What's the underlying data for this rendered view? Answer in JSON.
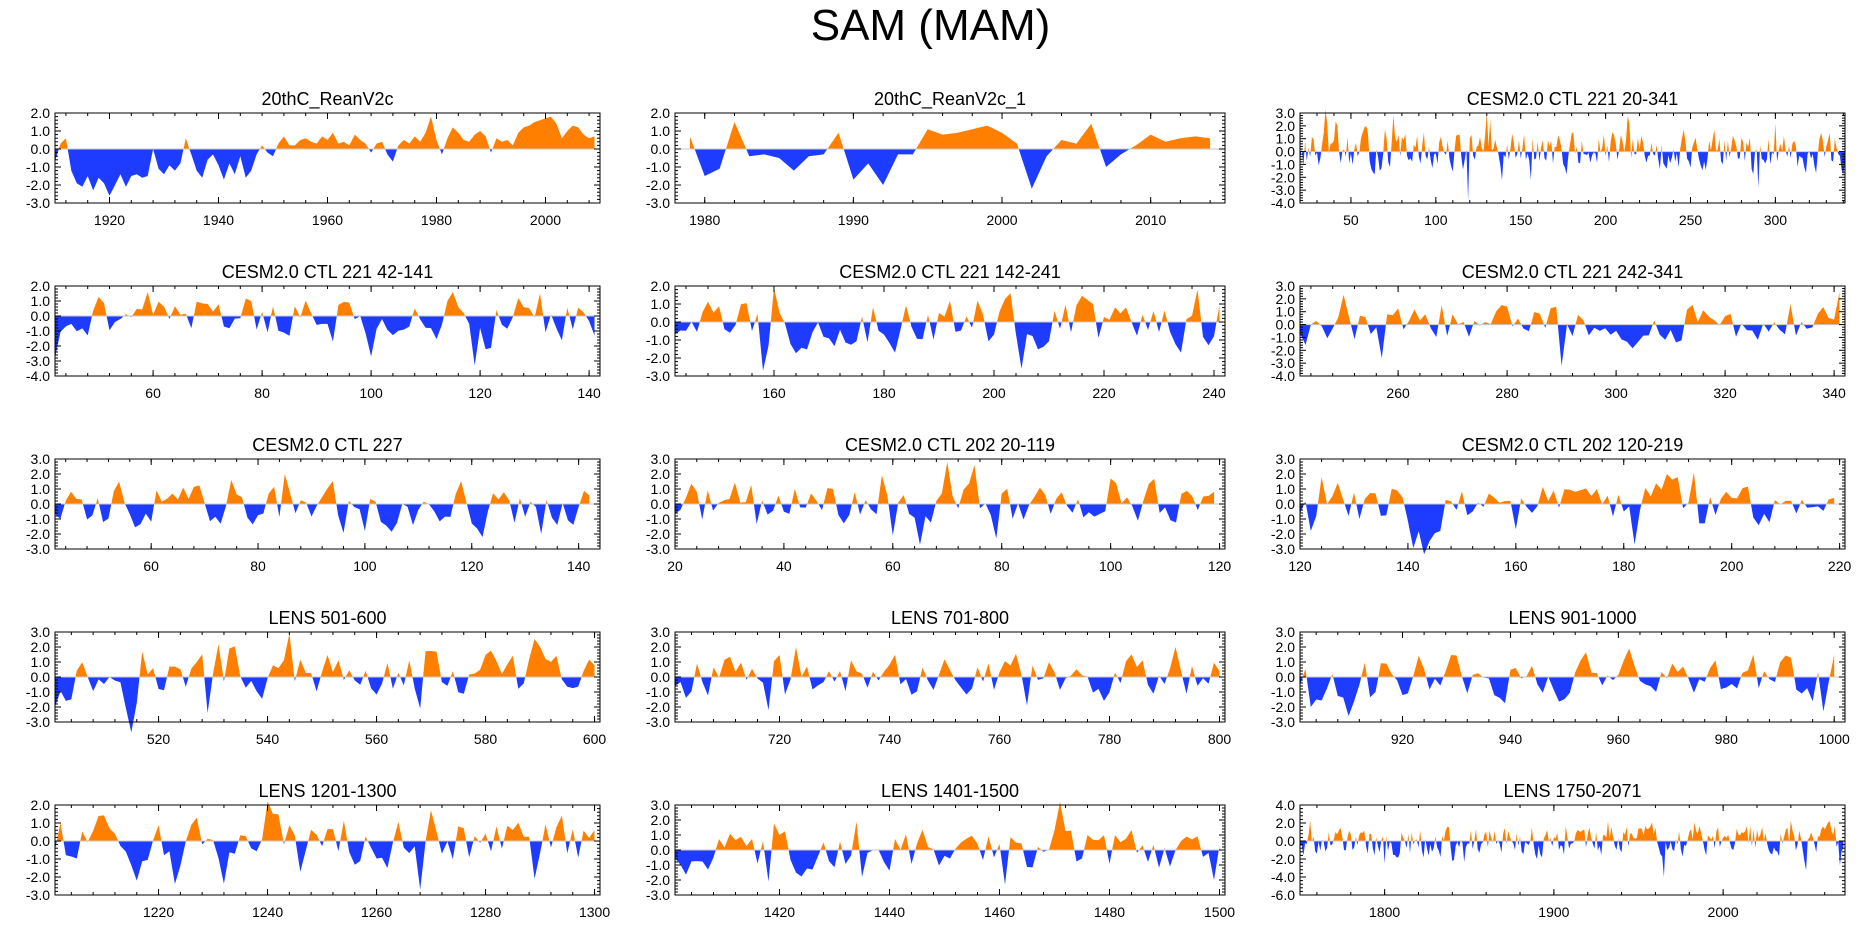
{
  "title": "SAM (MAM)",
  "colors": {
    "positive": "#ff8000",
    "negative": "#1e3cff",
    "axis": "#000000"
  },
  "chart_data": [
    {
      "type": "area",
      "title": "20thC_ReanV2c",
      "xlim": [
        1910,
        2010
      ],
      "ylim": [
        -3,
        2
      ],
      "yticks": [
        -3,
        -2,
        -1,
        0,
        1,
        2
      ],
      "ytick_labels": [
        "-3.0",
        "-2.0",
        "-1.0",
        "0.0",
        "1.0",
        "2.0"
      ],
      "xticks": [
        1920,
        1940,
        1960,
        1980,
        2000
      ],
      "xtick_labels": [
        "1920",
        "1940",
        "1960",
        "1980",
        "2000"
      ],
      "x": [
        1910,
        1911,
        1912,
        1913,
        1914,
        1915,
        1916,
        1917,
        1918,
        1919,
        1920,
        1921,
        1922,
        1923,
        1924,
        1925,
        1926,
        1927,
        1928,
        1929,
        1930,
        1931,
        1932,
        1933,
        1934,
        1935,
        1936,
        1937,
        1938,
        1939,
        1940,
        1941,
        1942,
        1943,
        1944,
        1945,
        1946,
        1947,
        1948,
        1949,
        1950,
        1951,
        1952,
        1953,
        1954,
        1955,
        1956,
        1957,
        1958,
        1959,
        1960,
        1961,
        1962,
        1963,
        1964,
        1965,
        1966,
        1967,
        1968,
        1969,
        1970,
        1971,
        1972,
        1973,
        1974,
        1975,
        1976,
        1977,
        1978,
        1979,
        1980,
        1981,
        1982,
        1983,
        1984,
        1985,
        1986,
        1987,
        1988,
        1989,
        1990,
        1991,
        1992,
        1993,
        1994,
        1995,
        1996,
        1997,
        1998,
        1999,
        2000,
        2001,
        2002,
        2003,
        2004,
        2005,
        2006,
        2007,
        2008,
        2009
      ],
      "values": [
        -0.7,
        0.3,
        0.6,
        -1.2,
        -1.9,
        -2.1,
        -1.5,
        -2.3,
        -1.6,
        -1.9,
        -2.6,
        -2.0,
        -1.4,
        -2.1,
        -1.5,
        -1.4,
        -1.6,
        -1.5,
        0.0,
        -1.1,
        -1.4,
        -0.9,
        -1.2,
        -0.8,
        0.6,
        -0.3,
        -1.2,
        -1.6,
        -0.6,
        -0.3,
        -0.9,
        -1.7,
        -0.8,
        -1.4,
        -0.4,
        -1.6,
        -1.2,
        -0.3,
        0.2,
        -0.2,
        -0.4,
        0.3,
        0.7,
        0.2,
        0.2,
        0.5,
        0.6,
        0.4,
        0.3,
        0.7,
        0.5,
        0.9,
        0.3,
        0.4,
        0.2,
        0.8,
        0.5,
        0.3,
        -0.2,
        0.3,
        0.4,
        -0.3,
        -0.7,
        0.2,
        0.5,
        0.3,
        0.7,
        0.4,
        0.9,
        1.8,
        0.5,
        -0.3,
        0.6,
        1.2,
        0.9,
        0.5,
        0.4,
        0.8,
        1.0,
        0.7,
        -0.2,
        0.6,
        0.4,
        0.5,
        0.2,
        0.9,
        1.2,
        1.3,
        1.5,
        1.6,
        1.7,
        1.8,
        1.4,
        0.6,
        1.0,
        1.3,
        1.2,
        0.8,
        0.6,
        0.7
      ]
    },
    {
      "type": "area",
      "title": "20thC_ReanV2c_1",
      "xlim": [
        1978,
        2015
      ],
      "ylim": [
        -3,
        2
      ],
      "yticks": [
        -3,
        -2,
        -1,
        0,
        1,
        2
      ],
      "ytick_labels": [
        "-3.0",
        "-2.0",
        "-1.0",
        "0.0",
        "1.0",
        "2.0"
      ],
      "xticks": [
        1980,
        1990,
        2000,
        2010
      ],
      "xtick_labels": [
        "1980",
        "1990",
        "2000",
        "2010"
      ],
      "x": [
        1979,
        1980,
        1981,
        1982,
        1983,
        1984,
        1985,
        1986,
        1987,
        1988,
        1989,
        1990,
        1991,
        1992,
        1993,
        1994,
        1995,
        1996,
        1997,
        1998,
        1999,
        2000,
        2001,
        2002,
        2003,
        2004,
        2005,
        2006,
        2007,
        2008,
        2009,
        2010,
        2011,
        2012,
        2013,
        2014
      ],
      "values": [
        0.7,
        -1.5,
        -1.1,
        1.5,
        -0.4,
        -0.3,
        -0.5,
        -1.2,
        -0.4,
        -0.3,
        0.9,
        -1.7,
        -0.8,
        -2.0,
        -0.3,
        -0.3,
        1.1,
        0.8,
        0.9,
        1.1,
        1.3,
        0.9,
        0.3,
        -2.2,
        -0.4,
        0.5,
        0.3,
        1.4,
        -1.0,
        -0.3,
        0.2,
        0.8,
        0.4,
        0.6,
        0.7,
        0.6
      ]
    },
    {
      "type": "area",
      "title": "CESM2.0 CTL 221 20-341",
      "xlim": [
        20,
        341
      ],
      "ylim": [
        -4,
        3
      ],
      "yticks": [
        -4,
        -3,
        -2,
        -1,
        0,
        1,
        2,
        3
      ],
      "ytick_labels": [
        "-4.0",
        "-3.0",
        "-2.0",
        "-1.0",
        "0.0",
        "1.0",
        "2.0",
        "3.0"
      ],
      "xticks": [
        50,
        100,
        150,
        200,
        250,
        300
      ],
      "xtick_labels": [
        "50",
        "100",
        "150",
        "200",
        "250",
        "300"
      ],
      "gen": {
        "start": 20,
        "end": 341,
        "amp": 0.9,
        "seed": 13,
        "spikes": [
          [
            119,
            -3.8
          ],
          [
            290,
            -2.8
          ],
          [
            156,
            -2.2
          ],
          [
            300,
            2.2
          ],
          [
            70,
            1.7
          ]
        ]
      }
    },
    {
      "type": "area",
      "title": "CESM2.0 CTL 221 42-141",
      "xlim": [
        42,
        142
      ],
      "ylim": [
        -4,
        2
      ],
      "yticks": [
        -4,
        -3,
        -2,
        -1,
        0,
        1,
        2
      ],
      "ytick_labels": [
        "-4.0",
        "-3.0",
        "-2.0",
        "-1.0",
        "0.0",
        "1.0",
        "2.0"
      ],
      "xticks": [
        60,
        80,
        100,
        120,
        140
      ],
      "xtick_labels": [
        "60",
        "80",
        "100",
        "120",
        "140"
      ],
      "gen": {
        "start": 42,
        "end": 141,
        "amp": 0.9,
        "seed": 21,
        "spikes": [
          [
            42,
            -2.8
          ],
          [
            119,
            -3.3
          ],
          [
            100,
            -2.7
          ],
          [
            59,
            1.6
          ],
          [
            131,
            1.5
          ]
        ]
      }
    },
    {
      "type": "area",
      "title": "CESM2.0 CTL 221 142-241",
      "xlim": [
        142,
        242
      ],
      "ylim": [
        -3,
        2
      ],
      "yticks": [
        -3,
        -2,
        -1,
        0,
        1,
        2
      ],
      "ytick_labels": [
        "-3.0",
        "-2.0",
        "-1.0",
        "0.0",
        "1.0",
        "2.0"
      ],
      "xticks": [
        160,
        180,
        200,
        220,
        240
      ],
      "xtick_labels": [
        "160",
        "180",
        "200",
        "220",
        "240"
      ],
      "gen": {
        "start": 142,
        "end": 241,
        "amp": 0.9,
        "seed": 33,
        "spikes": [
          [
            158,
            -2.7
          ],
          [
            205,
            -2.6
          ],
          [
            160,
            1.9
          ],
          [
            237,
            1.8
          ]
        ]
      }
    },
    {
      "type": "area",
      "title": "CESM2.0 CTL 221 242-341",
      "xlim": [
        242,
        342
      ],
      "ylim": [
        -4,
        3
      ],
      "yticks": [
        -4,
        -3,
        -2,
        -1,
        0,
        1,
        2,
        3
      ],
      "ytick_labels": [
        "-4.0",
        "-3.0",
        "-2.0",
        "-1.0",
        "0.0",
        "1.0",
        "2.0",
        "3.0"
      ],
      "xticks": [
        260,
        280,
        300,
        320,
        340
      ],
      "xtick_labels": [
        "260",
        "280",
        "300",
        "320",
        "340"
      ],
      "gen": {
        "start": 242,
        "end": 341,
        "amp": 0.9,
        "seed": 47,
        "spikes": [
          [
            290,
            -3.2
          ],
          [
            257,
            -2.6
          ],
          [
            268,
            1.5
          ],
          [
            332,
            1.6
          ]
        ]
      }
    },
    {
      "type": "area",
      "title": "CESM2.0 CTL 227",
      "xlim": [
        42,
        144
      ],
      "ylim": [
        -3,
        3
      ],
      "yticks": [
        -3,
        -2,
        -1,
        0,
        1,
        2,
        3
      ],
      "ytick_labels": [
        "-3.0",
        "-2.0",
        "-1.0",
        "0.0",
        "1.0",
        "2.0",
        "3.0"
      ],
      "xticks": [
        60,
        80,
        100,
        120,
        140
      ],
      "xtick_labels": [
        "60",
        "80",
        "100",
        "120",
        "140"
      ],
      "gen": {
        "start": 42,
        "end": 142,
        "amp": 0.9,
        "seed": 59,
        "spikes": [
          [
            85,
            2.0
          ],
          [
            75,
            1.6
          ],
          [
            122,
            -2.2
          ],
          [
            133,
            -2.0
          ],
          [
            100,
            -1.8
          ]
        ]
      }
    },
    {
      "type": "area",
      "title": "CESM2.0 CTL 202 20-119",
      "xlim": [
        20,
        121
      ],
      "ylim": [
        -3,
        3
      ],
      "yticks": [
        -3,
        -2,
        -1,
        0,
        1,
        2,
        3
      ],
      "ytick_labels": [
        "-3.0",
        "-2.0",
        "-1.0",
        "0.0",
        "1.0",
        "2.0",
        "3.0"
      ],
      "xticks": [
        20,
        40,
        60,
        80,
        100,
        120
      ],
      "xtick_labels": [
        "20",
        "40",
        "60",
        "80",
        "100",
        "120"
      ],
      "gen": {
        "start": 20,
        "end": 119,
        "amp": 0.9,
        "seed": 71,
        "spikes": [
          [
            70,
            2.8
          ],
          [
            75,
            2.6
          ],
          [
            79,
            -2.3
          ],
          [
            60,
            -2.1
          ],
          [
            100,
            1.7
          ]
        ]
      }
    },
    {
      "type": "area",
      "title": "CESM2.0 CTL 202 120-219",
      "xlim": [
        120,
        221
      ],
      "ylim": [
        -3,
        3
      ],
      "yticks": [
        -3,
        -2,
        -1,
        0,
        1,
        2,
        3
      ],
      "ytick_labels": [
        "-3.0",
        "-2.0",
        "-1.0",
        "0.0",
        "1.0",
        "2.0",
        "3.0"
      ],
      "xticks": [
        120,
        140,
        160,
        180,
        200,
        220
      ],
      "xtick_labels": [
        "120",
        "140",
        "160",
        "180",
        "200",
        "220"
      ],
      "gen": {
        "start": 120,
        "end": 219,
        "amp": 0.9,
        "seed": 83,
        "spikes": [
          [
            182,
            -2.7
          ],
          [
            188,
            2.0
          ],
          [
            193,
            2.1
          ],
          [
            124,
            1.8
          ],
          [
            122,
            -1.8
          ]
        ]
      }
    },
    {
      "type": "area",
      "title": "LENS 501-600",
      "xlim": [
        501,
        601
      ],
      "ylim": [
        -3,
        3
      ],
      "yticks": [
        -3,
        -2,
        -1,
        0,
        1,
        2,
        3
      ],
      "ytick_labels": [
        "-3.0",
        "-2.0",
        "-1.0",
        "0.0",
        "1.0",
        "2.0",
        "3.0"
      ],
      "xticks": [
        520,
        540,
        560,
        580,
        600
      ],
      "xtick_labels": [
        "520",
        "540",
        "560",
        "580",
        "600"
      ],
      "gen": {
        "start": 501,
        "end": 600,
        "amp": 0.9,
        "seed": 97,
        "spikes": [
          [
            529,
            -2.4
          ],
          [
            568,
            -2.1
          ],
          [
            501,
            -2.0
          ],
          [
            533,
            1.9
          ],
          [
            517,
            1.7
          ]
        ]
      }
    },
    {
      "type": "area",
      "title": "LENS 701-800",
      "xlim": [
        701,
        801
      ],
      "ylim": [
        -3,
        3
      ],
      "yticks": [
        -3,
        -2,
        -1,
        0,
        1,
        2,
        3
      ],
      "ytick_labels": [
        "-3.0",
        "-2.0",
        "-1.0",
        "0.0",
        "1.0",
        "2.0",
        "3.0"
      ],
      "xticks": [
        720,
        740,
        760,
        780,
        800
      ],
      "xtick_labels": [
        "720",
        "740",
        "760",
        "780",
        "800"
      ],
      "gen": {
        "start": 701,
        "end": 800,
        "amp": 0.9,
        "seed": 109,
        "spikes": [
          [
            718,
            -2.2
          ],
          [
            723,
            2.0
          ],
          [
            792,
            2.0
          ],
          [
            765,
            -1.9
          ]
        ]
      }
    },
    {
      "type": "area",
      "title": "LENS 901-1000",
      "xlim": [
        901,
        1002
      ],
      "ylim": [
        -3,
        3
      ],
      "yticks": [
        -3,
        -2,
        -1,
        0,
        1,
        2,
        3
      ],
      "ytick_labels": [
        "-3.0",
        "-2.0",
        "-1.0",
        "0.0",
        "1.0",
        "2.0",
        "3.0"
      ],
      "xticks": [
        920,
        940,
        960,
        980,
        1000
      ],
      "xtick_labels": [
        "920",
        "940",
        "960",
        "980",
        "1000"
      ],
      "gen": {
        "start": 901,
        "end": 1000,
        "amp": 0.9,
        "seed": 127,
        "spikes": [
          [
            910,
            -2.6
          ],
          [
            998,
            -2.3
          ],
          [
            962,
            1.9
          ],
          [
            903,
            -2.0
          ]
        ]
      }
    },
    {
      "type": "area",
      "title": "LENS 1201-1300",
      "xlim": [
        1201,
        1301
      ],
      "ylim": [
        -3,
        2
      ],
      "yticks": [
        -3,
        -2,
        -1,
        0,
        1,
        2
      ],
      "ytick_labels": [
        "-3.0",
        "-2.0",
        "-1.0",
        "0.0",
        "1.0",
        "2.0"
      ],
      "xticks": [
        1220,
        1240,
        1260,
        1280,
        1300
      ],
      "xtick_labels": [
        "1220",
        "1240",
        "1260",
        "1280",
        "1300"
      ],
      "gen": {
        "start": 1201,
        "end": 1300,
        "amp": 0.8,
        "seed": 139,
        "spikes": [
          [
            1268,
            -2.7
          ],
          [
            1216,
            -2.2
          ],
          [
            1289,
            -2.1
          ],
          [
            1270,
            1.7
          ]
        ]
      }
    },
    {
      "type": "area",
      "title": "LENS 1401-1500",
      "xlim": [
        1401,
        1501
      ],
      "ylim": [
        -3,
        3
      ],
      "yticks": [
        -3,
        -2,
        -1,
        0,
        1,
        2,
        3
      ],
      "ytick_labels": [
        "-3.0",
        "-2.0",
        "-1.0",
        "0.0",
        "1.0",
        "2.0",
        "3.0"
      ],
      "xticks": [
        1420,
        1440,
        1460,
        1480,
        1500
      ],
      "xtick_labels": [
        "1420",
        "1440",
        "1460",
        "1480",
        "1500"
      ],
      "gen": {
        "start": 1401,
        "end": 1500,
        "amp": 0.9,
        "seed": 151,
        "spikes": [
          [
            1461,
            -2.3
          ],
          [
            1418,
            -2.1
          ],
          [
            1434,
            1.9
          ],
          [
            1499,
            -2.0
          ]
        ]
      }
    },
    {
      "type": "area",
      "title": "LENS 1750-2071",
      "xlim": [
        1750,
        2072
      ],
      "ylim": [
        -6,
        4
      ],
      "yticks": [
        -6,
        -4,
        -2,
        0,
        2,
        4
      ],
      "ytick_labels": [
        "-6.0",
        "-4.0",
        "-2.0",
        "0.0",
        "2.0",
        "4.0"
      ],
      "xticks": [
        1800,
        1900,
        2000
      ],
      "xtick_labels": [
        "1800",
        "1900",
        "2000"
      ],
      "gen": {
        "start": 1750,
        "end": 2071,
        "amp": 1.0,
        "seed": 163,
        "spikes": [
          [
            1965,
            -4.0
          ],
          [
            2069,
            -2.7
          ],
          [
            2040,
            2.3
          ],
          [
            1800,
            -2.5
          ]
        ]
      }
    }
  ]
}
